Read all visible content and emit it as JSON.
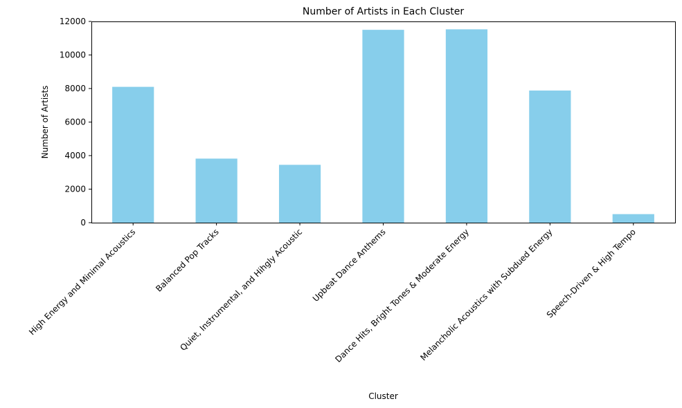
{
  "chart_data": {
    "type": "bar",
    "title": "Number of Artists in Each Cluster",
    "xlabel": "Cluster",
    "ylabel": "Number of Artists",
    "categories": [
      "High Energy and Minimal Acoustics",
      "Balanced Pop Tracks",
      "Quiet, Instrumental, and Hihgly Acoustic",
      "Upbeat Dance Anthems",
      "Dance Hits, Bright Tones & Moderate Energy",
      "Melancholic Acoustics with Subdued Energy",
      "Speech-Driven & High Tempo"
    ],
    "values": [
      8100,
      3820,
      3450,
      11500,
      11530,
      7880,
      510
    ],
    "ylim": [
      0,
      12000
    ],
    "yticks": [
      0,
      2000,
      4000,
      6000,
      8000,
      10000,
      12000
    ],
    "ytick_labels": [
      "0",
      "2000",
      "4000",
      "6000",
      "8000",
      "10000",
      "12000"
    ],
    "bar_color": "#87CEEB",
    "grid": false,
    "legend": "none"
  }
}
